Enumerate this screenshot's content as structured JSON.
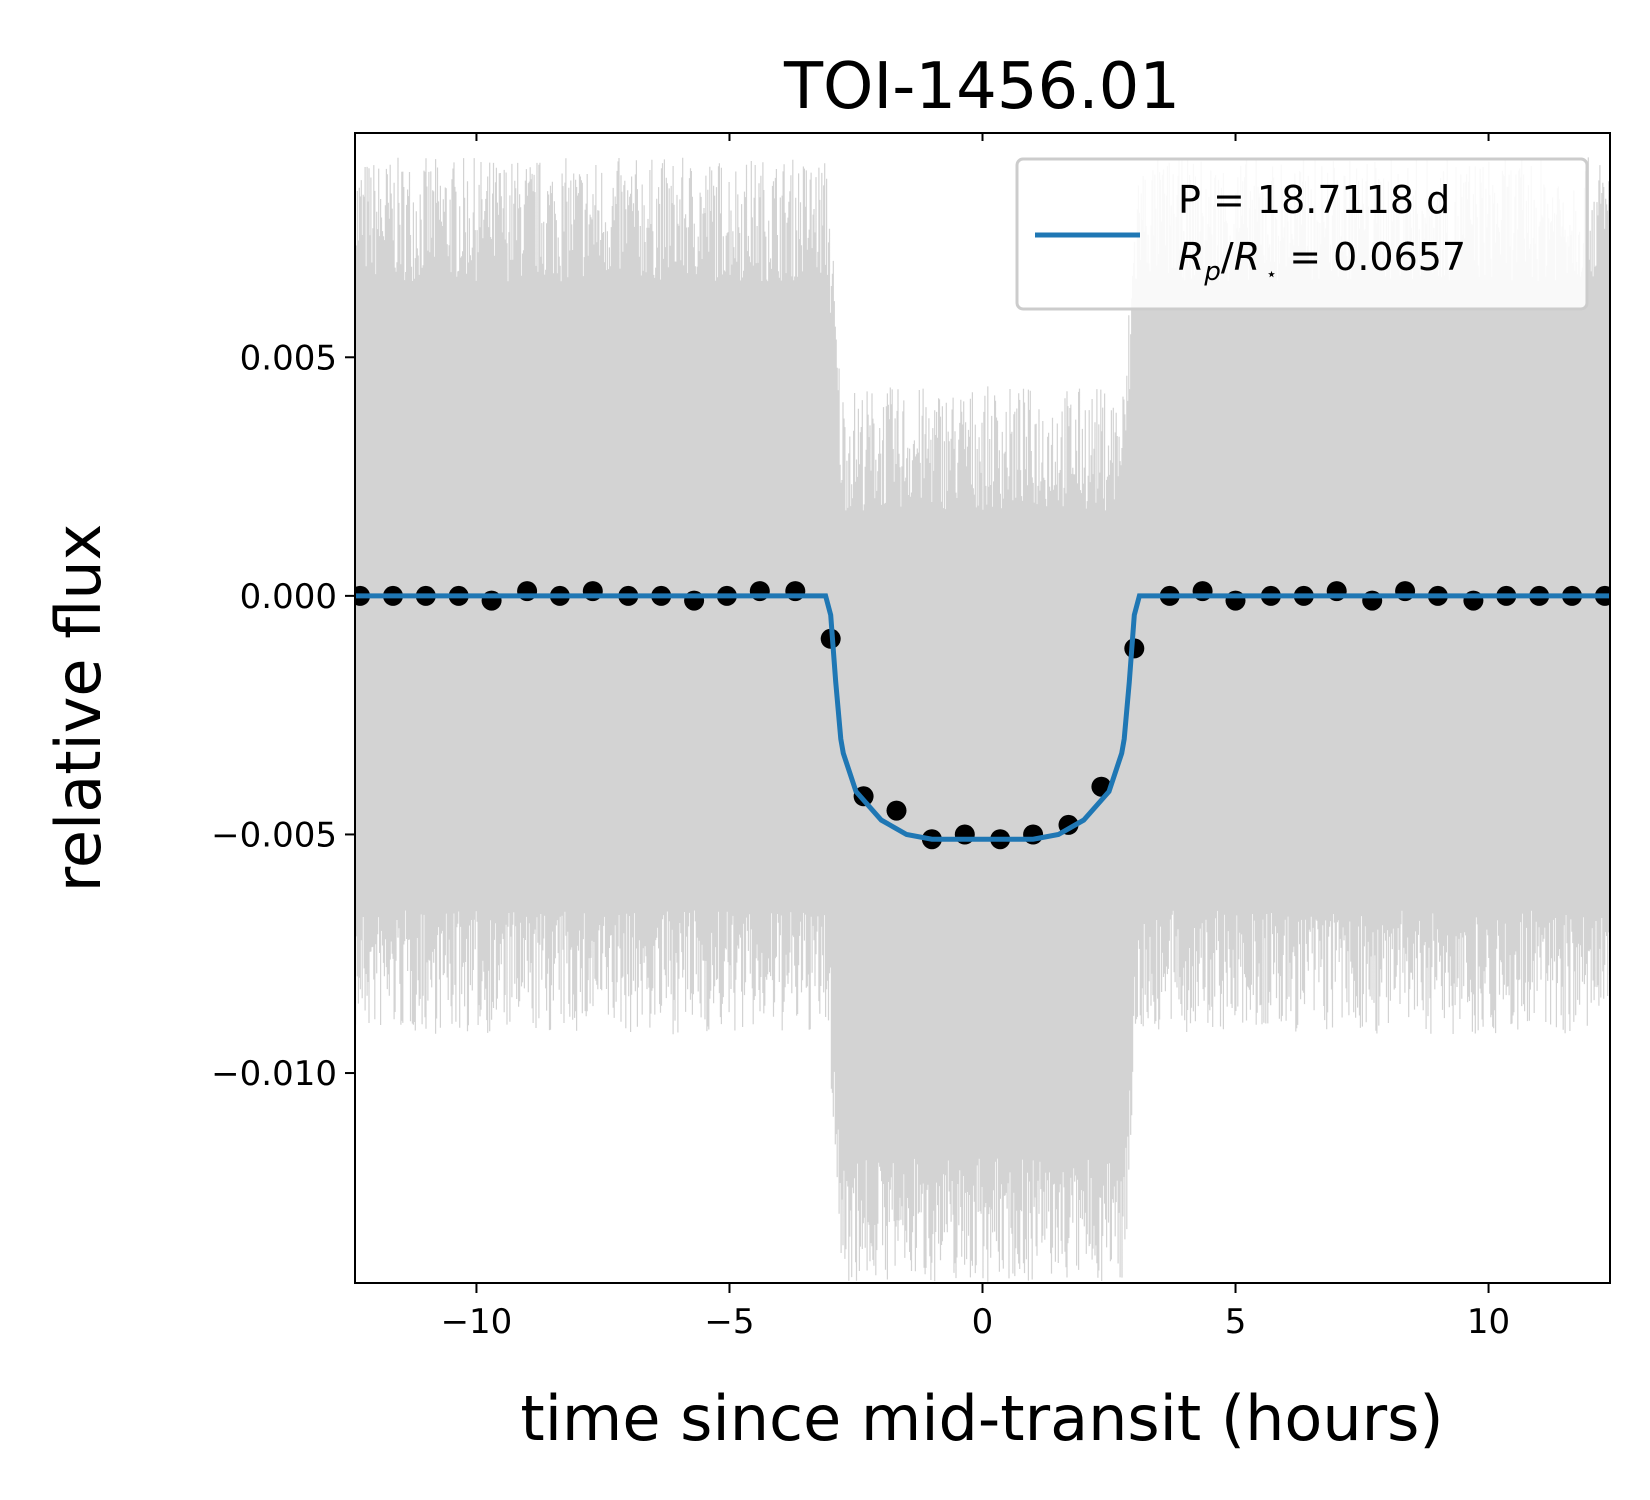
{
  "chart_data": {
    "type": "scatter",
    "title": "TOI-1456.01",
    "xlabel": "time since mid-transit (hours)",
    "ylabel": "relative flux",
    "xlim": [
      -12.4,
      12.4
    ],
    "ylim": [
      -0.0144,
      0.0097
    ],
    "xticks": [
      -10,
      -5,
      0,
      5,
      10
    ],
    "xtick_labels": [
      "−10",
      "−5",
      "0",
      "5",
      "10"
    ],
    "yticks": [
      0.005,
      0.0,
      -0.005,
      -0.01
    ],
    "ytick_labels": [
      "0.005",
      "0.000",
      "−0.005",
      "−0.010"
    ],
    "grid": false,
    "legend": {
      "placement": "top-right",
      "entries": [
        "P = 18.7118 d",
        "R_p/R_⋆ = 0.0657"
      ]
    },
    "raw_flux_envelope": {
      "color": "#d3d3d3",
      "out_of_transit_range": [
        -0.0075,
        0.0075
      ],
      "in_transit_range": [
        -0.0127,
        0.0027
      ]
    },
    "binned_points": {
      "color": "#000000",
      "x": [
        -12.3,
        -11.65,
        -11.0,
        -10.35,
        -9.7,
        -9.0,
        -8.35,
        -7.7,
        -7.0,
        -6.35,
        -5.7,
        -5.05,
        -4.4,
        -3.7,
        -3.0,
        -2.35,
        -1.7,
        -1.0,
        -0.35,
        0.35,
        1.0,
        1.7,
        2.35,
        3.0,
        3.7,
        4.35,
        5.0,
        5.7,
        6.35,
        7.0,
        7.7,
        8.35,
        9.0,
        9.7,
        10.35,
        11.0,
        11.65,
        12.3
      ],
      "y": [
        0.0,
        0.0,
        0.0,
        0.0,
        -0.0001,
        0.0001,
        0.0,
        0.0001,
        0.0,
        0.0,
        -0.0001,
        0.0,
        0.0001,
        0.0001,
        -0.0009,
        -0.0042,
        -0.0045,
        -0.0051,
        -0.005,
        -0.0051,
        -0.005,
        -0.0048,
        -0.004,
        -0.0011,
        0.0,
        0.0001,
        -0.0001,
        0.0,
        0.0,
        0.0001,
        -0.0001,
        0.0001,
        0.0,
        -0.0001,
        0.0,
        0.0,
        0.0,
        0.0
      ]
    },
    "model": {
      "color": "#1f77b4",
      "period_days": 18.7118,
      "radius_ratio": 0.0657,
      "x": [
        -12.4,
        -3.1,
        -3.0,
        -2.9,
        -2.8,
        -2.75,
        -2.5,
        -2.0,
        -1.5,
        -1.0,
        -0.5,
        0.0,
        0.5,
        1.0,
        1.5,
        2.0,
        2.5,
        2.75,
        2.8,
        2.9,
        3.0,
        3.1,
        12.4
      ],
      "y": [
        0.0,
        0.0,
        -0.0004,
        -0.0018,
        -0.003,
        -0.0033,
        -0.0041,
        -0.0047,
        -0.005,
        -0.0051,
        -0.0051,
        -0.0051,
        -0.0051,
        -0.0051,
        -0.005,
        -0.0047,
        -0.0041,
        -0.0033,
        -0.003,
        -0.0018,
        -0.0004,
        0.0,
        0.0
      ]
    }
  }
}
